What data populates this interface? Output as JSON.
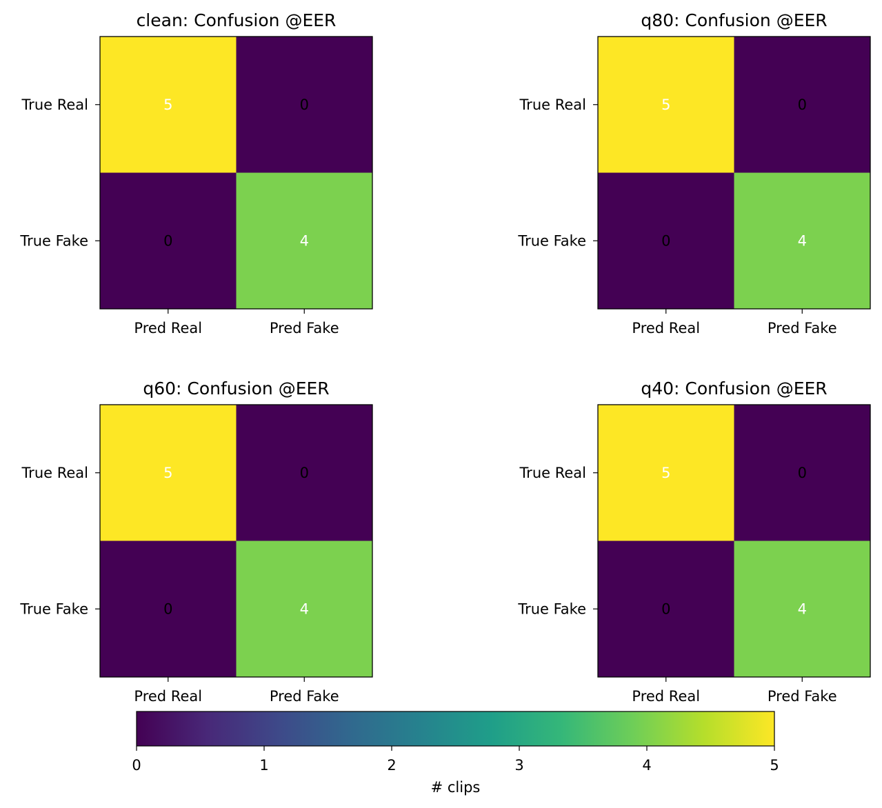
{
  "chart_data": [
    {
      "type": "heatmap",
      "title": "clean: Confusion @EER",
      "row_labels": [
        "True Real",
        "True Fake"
      ],
      "col_labels": [
        "Pred Real",
        "Pred Fake"
      ],
      "values": [
        [
          5,
          0
        ],
        [
          0,
          4
        ]
      ]
    },
    {
      "type": "heatmap",
      "title": "q80: Confusion @EER",
      "row_labels": [
        "True Real",
        "True Fake"
      ],
      "col_labels": [
        "Pred Real",
        "Pred Fake"
      ],
      "values": [
        [
          5,
          0
        ],
        [
          0,
          4
        ]
      ]
    },
    {
      "type": "heatmap",
      "title": "q60: Confusion @EER",
      "row_labels": [
        "True Real",
        "True Fake"
      ],
      "col_labels": [
        "Pred Real",
        "Pred Fake"
      ],
      "values": [
        [
          5,
          0
        ],
        [
          0,
          4
        ]
      ]
    },
    {
      "type": "heatmap",
      "title": "q40: Confusion @EER",
      "row_labels": [
        "True Real",
        "True Fake"
      ],
      "col_labels": [
        "Pred Real",
        "Pred Fake"
      ],
      "values": [
        [
          5,
          0
        ],
        [
          0,
          4
        ]
      ]
    }
  ],
  "colorbar": {
    "label": "# clips",
    "range": [
      0,
      5
    ],
    "ticks": [
      "0",
      "1",
      "2",
      "3",
      "4",
      "5"
    ],
    "colormap": "viridis",
    "orientation": "horizontal"
  },
  "colors": {
    "text_dark": "#000000",
    "text_light": "#ffffff",
    "viridis_stops": [
      "#440154",
      "#482878",
      "#3e4989",
      "#31688e",
      "#26828e",
      "#1f9e89",
      "#35b779",
      "#6ece58",
      "#b5de2b",
      "#fde725"
    ]
  }
}
